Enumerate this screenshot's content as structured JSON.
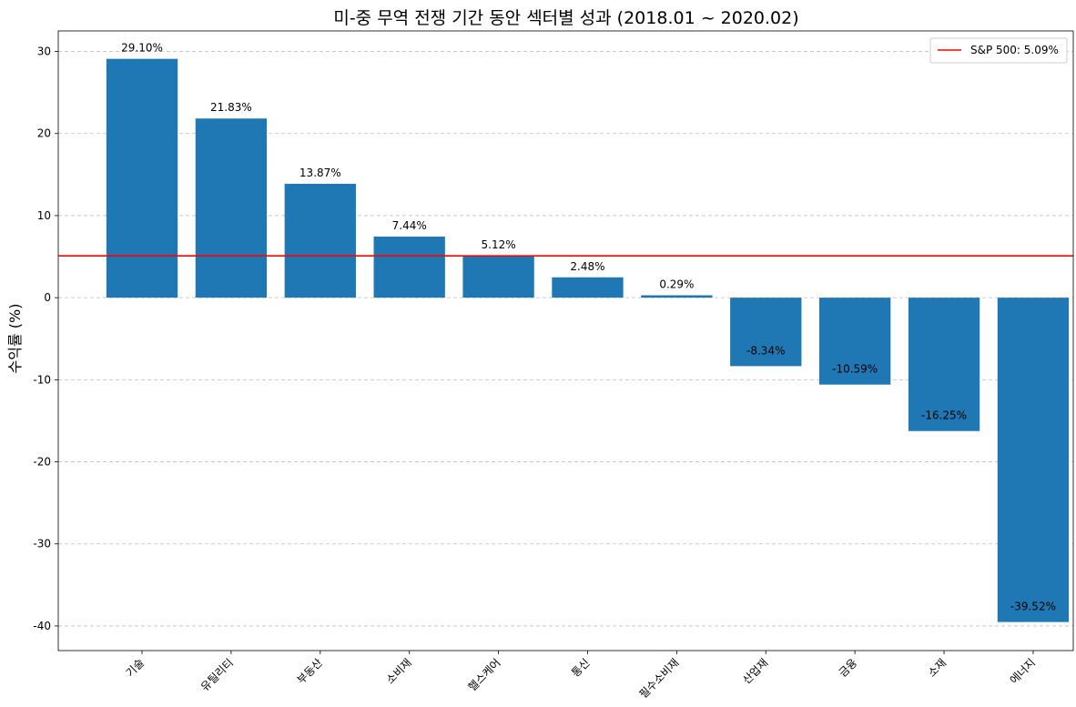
{
  "chart_data": {
    "type": "bar",
    "title": "미-중 무역 전쟁 기간 동안 섹터별 성과 (2018.01 ~ 2020.02)",
    "xlabel": "",
    "ylabel": "수익률 (%)",
    "ylim": [
      -43,
      32.5
    ],
    "yticks": [
      30,
      20,
      10,
      0,
      -10,
      -20,
      -30,
      -40
    ],
    "grid": "y-dashed",
    "categories": [
      "기술",
      "유틸리티",
      "부동산",
      "소비재",
      "헬스케어",
      "통신",
      "필수소비재",
      "산업재",
      "금융",
      "소재",
      "에너지"
    ],
    "values": [
      29.1,
      21.83,
      13.87,
      7.44,
      5.12,
      2.48,
      0.29,
      -8.34,
      -10.59,
      -16.25,
      -39.52
    ],
    "value_labels": [
      "29.10%",
      "21.83%",
      "13.87%",
      "7.44%",
      "5.12%",
      "2.48%",
      "0.29%",
      "-8.34%",
      "-10.59%",
      "-16.25%",
      "-39.52%"
    ],
    "bar_color": "#1f77b4",
    "reference_line": {
      "label": "S&P 500: 5.09%",
      "value": 5.09,
      "color": "#ff0000"
    },
    "legend_position": "top-right"
  }
}
